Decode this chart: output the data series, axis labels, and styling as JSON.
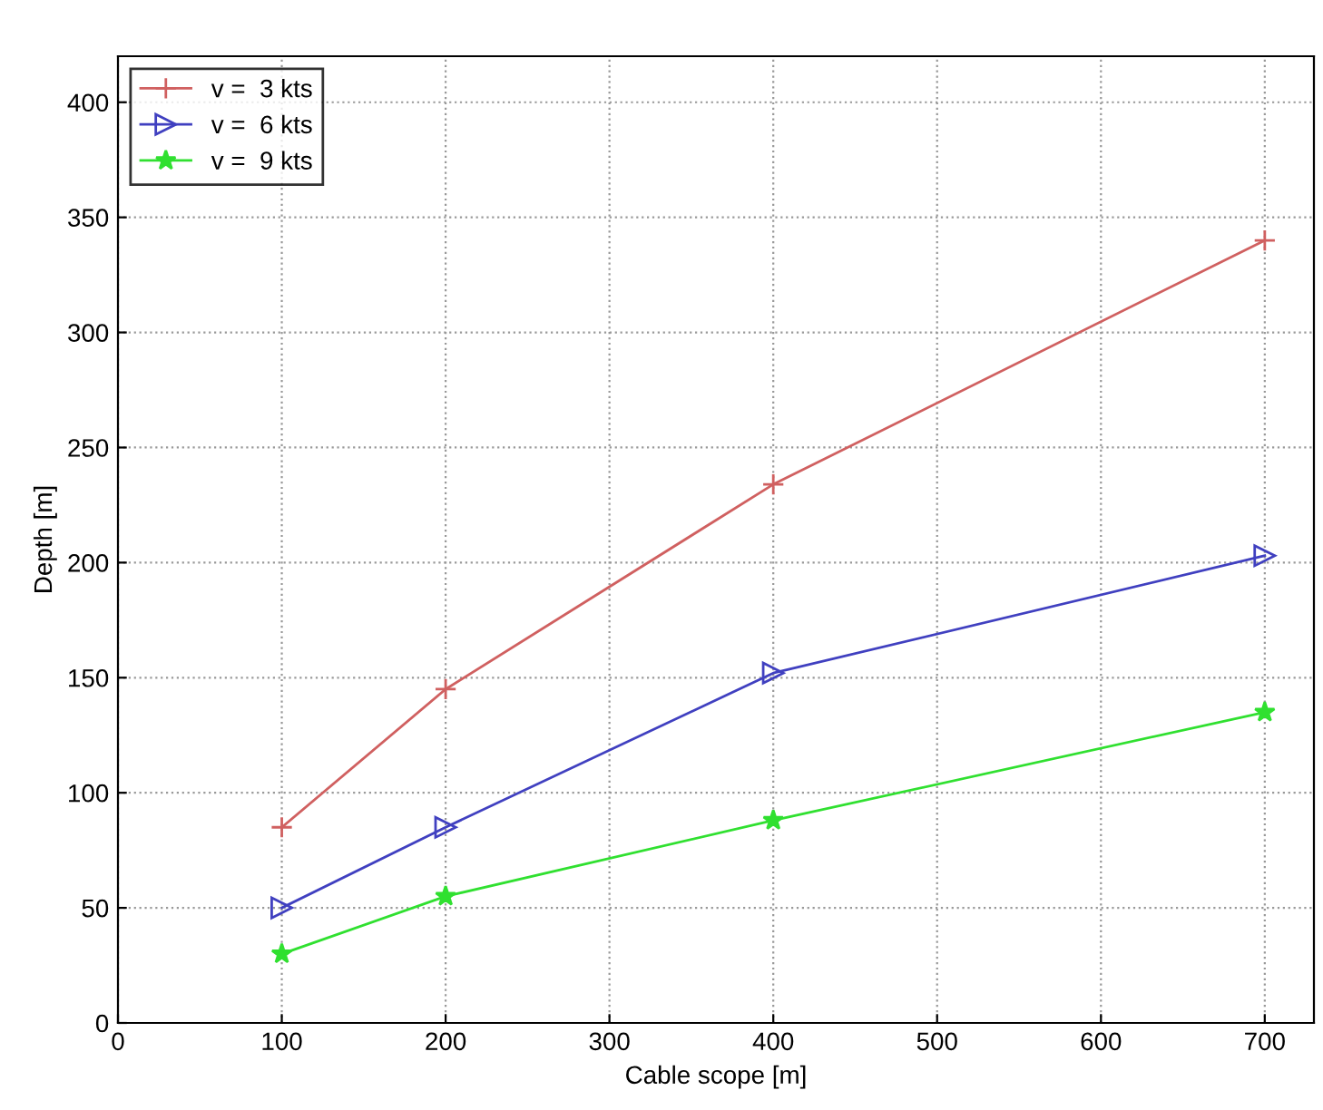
{
  "chart_data": {
    "type": "line",
    "xlabel": "Cable scope [m]",
    "ylabel": "Depth [m]",
    "x": [
      100,
      200,
      400,
      700
    ],
    "series": [
      {
        "name": "v =  3 kts",
        "color": "#d06060",
        "marker": "cross",
        "values": [
          85,
          145,
          234,
          340
        ]
      },
      {
        "name": "v =  6 kts",
        "color": "#4040c0",
        "marker": "triangle",
        "values": [
          50,
          85,
          152,
          203
        ]
      },
      {
        "name": "v =  9 kts",
        "color": "#30e030",
        "marker": "star",
        "values": [
          30,
          55,
          88,
          135
        ]
      }
    ],
    "xlim": [
      0,
      730
    ],
    "xticks": [
      0,
      100,
      200,
      300,
      400,
      500,
      600,
      700
    ],
    "ylim": [
      0,
      420
    ],
    "yticks": [
      0,
      50,
      100,
      150,
      200,
      250,
      300,
      350,
      400
    ],
    "grid": true,
    "legend": "top left",
    "line_style": "solid"
  }
}
